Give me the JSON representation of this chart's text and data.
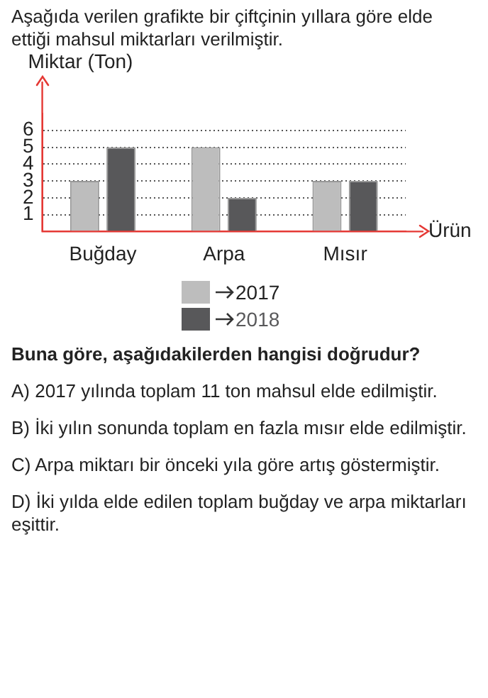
{
  "chart_data": {
    "type": "bar",
    "title": "Aşağıda verilen grafikte bir çiftçinin yıllara göre elde ettiği mahsul miktarları verilmiştir.",
    "xlabel": "Ürün",
    "ylabel": "Miktar (Ton)",
    "categories": [
      "Buğday",
      "Arpa",
      "Mısır"
    ],
    "series": [
      {
        "name": "2017",
        "color": "#bdbdbd",
        "values": [
          3,
          5,
          3
        ]
      },
      {
        "name": "2018",
        "color": "#58585a",
        "values": [
          5,
          2,
          3
        ]
      }
    ],
    "ylim": [
      0,
      7
    ],
    "yticks": [
      1,
      2,
      3,
      4,
      5,
      6
    ],
    "grid": "y",
    "legend": "bottom",
    "annotations": [
      "Buna göre, aşağıdakilerden hangisi doğrudur?",
      "A) 2017 yılında toplam 11 ton mahsul elde edilmiştir.",
      "B) İki yılın sonunda toplam en fazla mısır elde edilmiştir.",
      "C) Arpa miktarı bir önceki yıla göre artış göstermiştir.",
      "D) İki yılda elde edilen toplam buğday ve arpa miktarları eşittir."
    ]
  }
}
